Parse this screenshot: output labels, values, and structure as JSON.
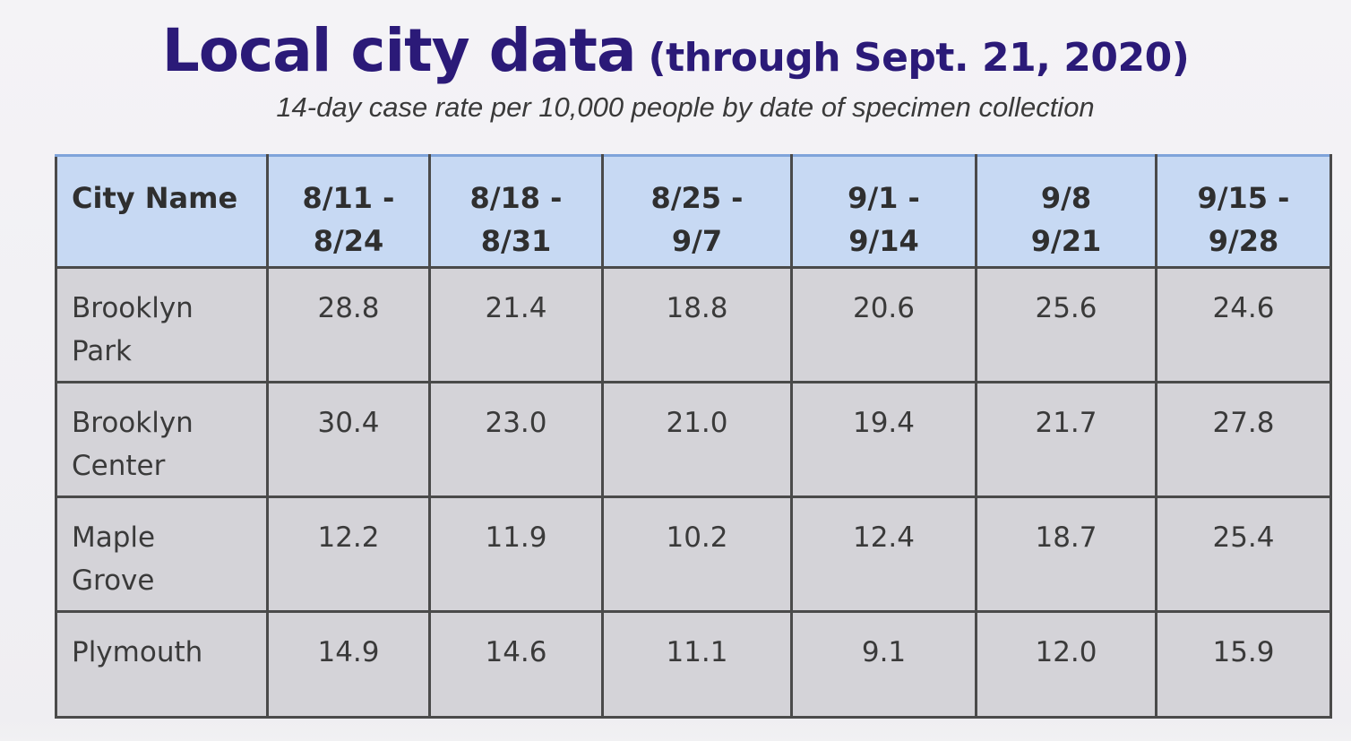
{
  "title": {
    "main": "Local city data",
    "sub": "(through Sept. 21, 2020)"
  },
  "subtitle": "14-day case rate per 10,000 people by date of specimen collection",
  "table": {
    "headers": [
      {
        "line1": "City Name",
        "line2": ""
      },
      {
        "line1": "8/11 -",
        "line2": "8/24"
      },
      {
        "line1": "8/18 -",
        "line2": "8/31"
      },
      {
        "line1": "8/25 -",
        "line2": "9/7"
      },
      {
        "line1": "9/1 -",
        "line2": "9/14"
      },
      {
        "line1": "9/8",
        "line2": "9/21"
      },
      {
        "line1": "9/15 -",
        "line2": "9/28"
      }
    ],
    "rows": [
      {
        "city_line1": "Brooklyn",
        "city_line2": "Park",
        "values": [
          "28.8",
          "21.4",
          "18.8",
          "20.6",
          "25.6",
          "24.6"
        ]
      },
      {
        "city_line1": "Brooklyn",
        "city_line2": "Center",
        "values": [
          "30.4",
          "23.0",
          "21.0",
          "19.4",
          "21.7",
          "27.8"
        ]
      },
      {
        "city_line1": "Maple",
        "city_line2": "Grove",
        "values": [
          "12.2",
          "11.9",
          "10.2",
          "12.4",
          "18.7",
          "25.4"
        ]
      },
      {
        "city_line1": "Plymouth",
        "city_line2": "",
        "values": [
          "14.9",
          "14.6",
          "11.1",
          "9.1",
          "12.0",
          "15.9"
        ]
      }
    ]
  },
  "colors": {
    "title": "#2b1a78",
    "header_bg": "#c7d9f3",
    "cell_bg": "#d4d3d8",
    "border": "#4a4a4a"
  }
}
